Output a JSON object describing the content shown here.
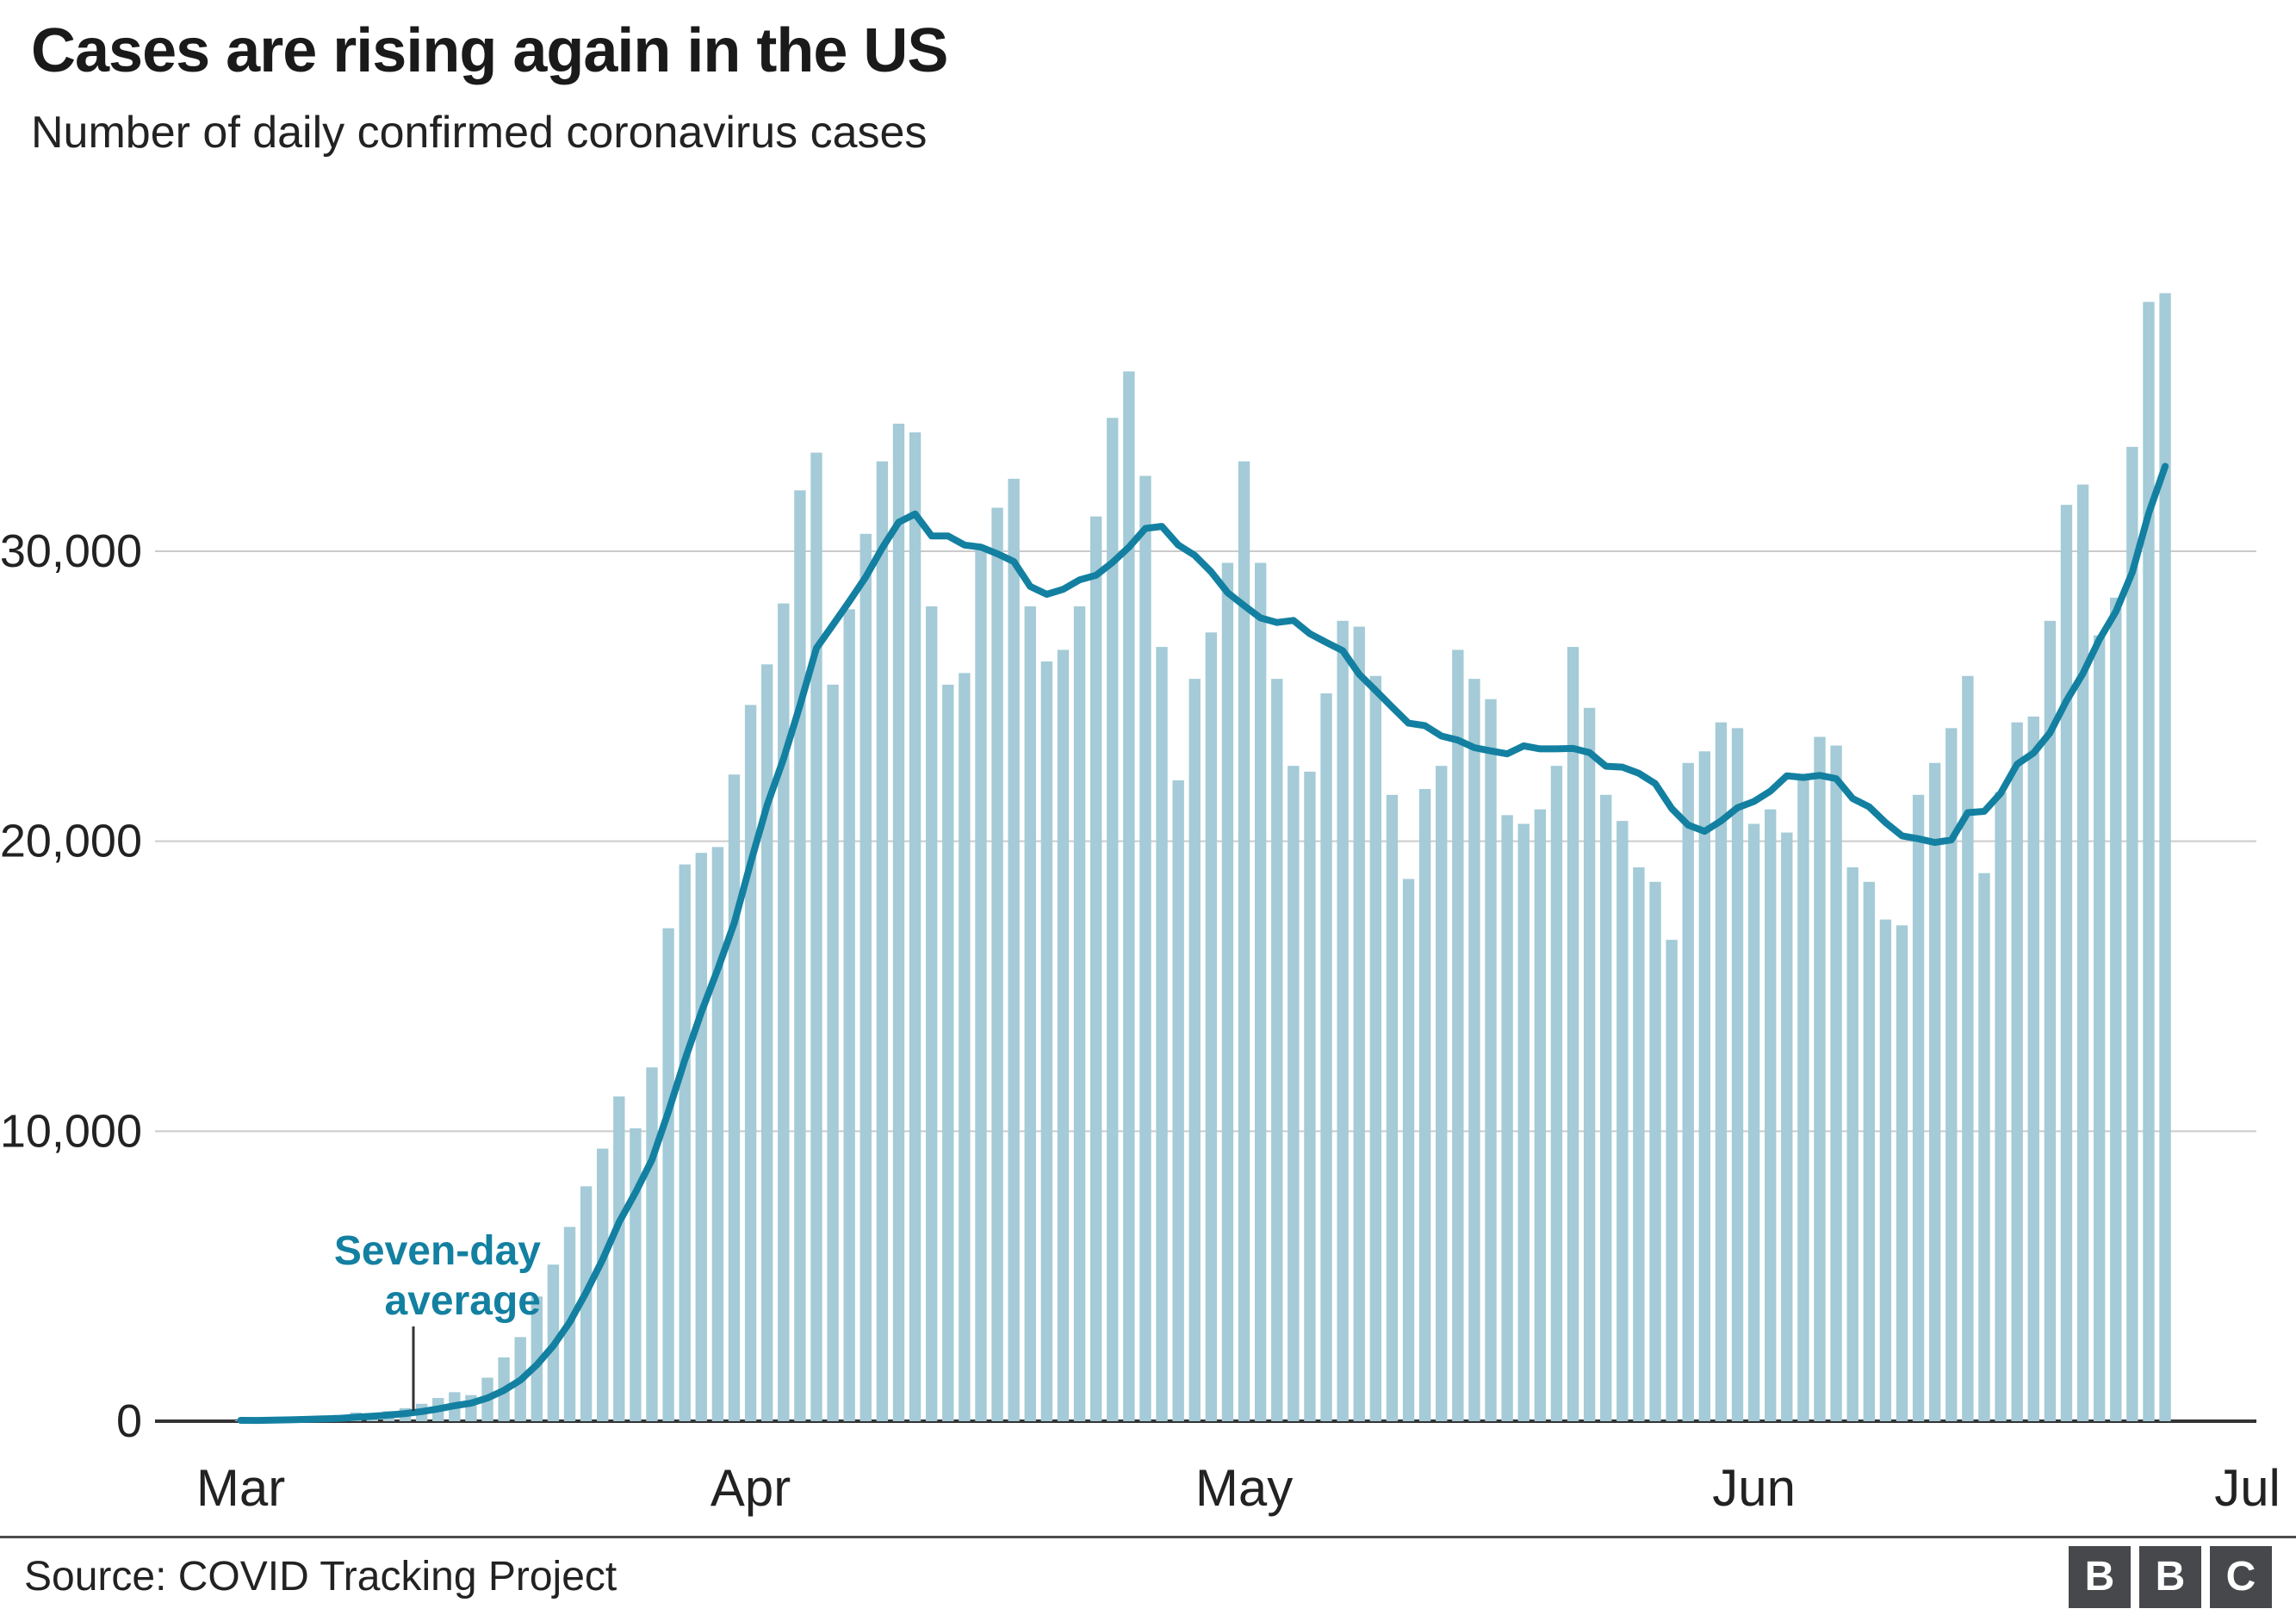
{
  "header": {
    "title": "Cases are rising again in the US",
    "subtitle": "Number of daily confirmed coronavirus cases"
  },
  "footer": {
    "source": "Source: COVID Tracking Project",
    "logo_letters": [
      "B",
      "B",
      "C"
    ]
  },
  "colors": {
    "bar": "#a4cbd7",
    "line": "#1380a1",
    "grid": "#cbcbcb",
    "baseline": "#333333",
    "axis_text": "#222222",
    "annotation": "#1380a1"
  },
  "chart_data": {
    "type": "bar",
    "overlay": "line",
    "overlay_name": "Seven-day average",
    "title": "Cases are rising again in the US",
    "subtitle": "Number of daily confirmed coronavirus cases",
    "x_start_date": "2020-03-01",
    "x_total_days": 122,
    "x_tick_labels": [
      "Mar",
      "Apr",
      "May",
      "Jun",
      "Jul"
    ],
    "x_tick_day_offsets": [
      0,
      31,
      61,
      92,
      122
    ],
    "y_ticks": [
      0,
      10000,
      20000,
      30000
    ],
    "y_tick_labels": [
      "0",
      "10,000",
      "20,000",
      "30,000"
    ],
    "ylim": [
      0,
      40000
    ],
    "grid": true,
    "annotation_lines": [
      "Seven-day",
      "average"
    ],
    "values": [
      30,
      25,
      60,
      80,
      120,
      160,
      220,
      300,
      250,
      350,
      450,
      600,
      800,
      1000,
      900,
      1500,
      2200,
      2900,
      4300,
      5400,
      6700,
      8100,
      9400,
      11200,
      10100,
      12200,
      17000,
      19200,
      19600,
      19800,
      22300,
      24700,
      26100,
      28200,
      32100,
      33400,
      25400,
      28000,
      30600,
      33100,
      34400,
      34100,
      28100,
      25400,
      25800,
      30100,
      31500,
      32500,
      28100,
      26200,
      26600,
      28100,
      31200,
      34600,
      36200,
      32600,
      26700,
      22100,
      25600,
      27200,
      29600,
      33100,
      29600,
      25600,
      22600,
      22400,
      25100,
      27600,
      27400,
      25700,
      21600,
      18700,
      21800,
      22600,
      26600,
      25600,
      24900,
      20900,
      20600,
      21100,
      22600,
      26700,
      24600,
      21600,
      20700,
      19100,
      18600,
      16600,
      22700,
      23100,
      24100,
      23900,
      20600,
      21100,
      20300,
      22300,
      23600,
      23300,
      19100,
      18600,
      17300,
      17100,
      21600,
      22700,
      23900,
      25700,
      18900,
      21700,
      24100,
      24300,
      27600,
      31600,
      32300,
      27100,
      28400,
      33600,
      38600,
      38900
    ]
  }
}
